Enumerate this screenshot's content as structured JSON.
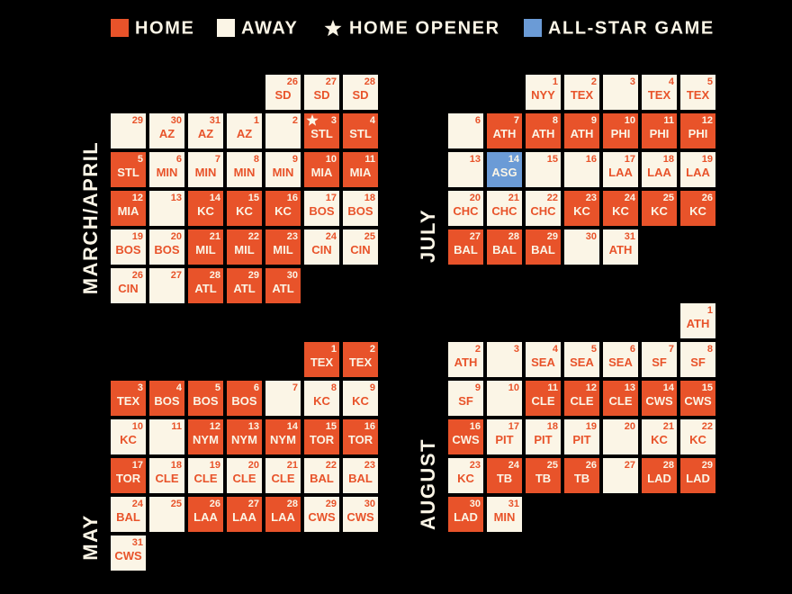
{
  "legend": {
    "home": "HOME",
    "away": "AWAY",
    "opener": "HOME OPENER",
    "all_star": "ALL-STAR GAME"
  },
  "months": [
    {
      "label": "MARCH/APRIL",
      "days": [
        {
          "day": 26,
          "opponent": "SD",
          "game": "away"
        },
        {
          "day": 27,
          "opponent": "SD",
          "game": "away"
        },
        {
          "day": 28,
          "opponent": "SD",
          "game": "away"
        },
        {
          "day": 29,
          "game": "away"
        },
        {
          "day": 30,
          "opponent": "AZ",
          "game": "away"
        },
        {
          "day": 31,
          "opponent": "AZ",
          "game": "away"
        },
        {
          "day": 1,
          "opponent": "AZ",
          "game": "away"
        },
        {
          "day": 2,
          "game": "away"
        },
        {
          "day": 3,
          "opponent": "STL",
          "game": "home",
          "opener": true
        },
        {
          "day": 4,
          "opponent": "STL",
          "game": "home"
        },
        {
          "day": 5,
          "opponent": "STL",
          "game": "home"
        },
        {
          "day": 6,
          "opponent": "MIN",
          "game": "away"
        },
        {
          "day": 7,
          "opponent": "MIN",
          "game": "away"
        },
        {
          "day": 8,
          "opponent": "MIN",
          "game": "away"
        },
        {
          "day": 9,
          "opponent": "MIN",
          "game": "away"
        },
        {
          "day": 10,
          "opponent": "MIA",
          "game": "home"
        },
        {
          "day": 11,
          "opponent": "MIA",
          "game": "home"
        },
        {
          "day": 12,
          "opponent": "MIA",
          "game": "home"
        },
        {
          "day": 13,
          "game": "away"
        },
        {
          "day": 14,
          "opponent": "KC",
          "game": "home"
        },
        {
          "day": 15,
          "opponent": "KC",
          "game": "home"
        },
        {
          "day": 16,
          "opponent": "KC",
          "game": "home"
        },
        {
          "day": 17,
          "opponent": "BOS",
          "game": "away"
        },
        {
          "day": 18,
          "opponent": "BOS",
          "game": "away"
        },
        {
          "day": 19,
          "opponent": "BOS",
          "game": "away"
        },
        {
          "day": 20,
          "opponent": "BOS",
          "game": "away"
        },
        {
          "day": 21,
          "opponent": "MIL",
          "game": "home"
        },
        {
          "day": 22,
          "opponent": "MIL",
          "game": "home"
        },
        {
          "day": 23,
          "opponent": "MIL",
          "game": "home"
        },
        {
          "day": 24,
          "opponent": "CIN",
          "game": "away"
        },
        {
          "day": 25,
          "opponent": "CIN",
          "game": "away"
        },
        {
          "day": 26,
          "opponent": "CIN",
          "game": "away"
        },
        {
          "day": 27,
          "game": "away"
        },
        {
          "day": 28,
          "opponent": "ATL",
          "game": "home"
        },
        {
          "day": 29,
          "opponent": "ATL",
          "game": "home"
        },
        {
          "day": 30,
          "opponent": "ATL",
          "game": "home"
        }
      ]
    },
    {
      "label": "JULY",
      "days": [
        {
          "day": 1,
          "opponent": "NYY",
          "game": "away"
        },
        {
          "day": 2,
          "opponent": "TEX",
          "game": "away"
        },
        {
          "day": 3,
          "game": "away"
        },
        {
          "day": 4,
          "opponent": "TEX",
          "game": "away"
        },
        {
          "day": 5,
          "opponent": "TEX",
          "game": "away"
        },
        {
          "day": 6,
          "game": "away"
        },
        {
          "day": 7,
          "opponent": "ATH",
          "game": "home"
        },
        {
          "day": 8,
          "opponent": "ATH",
          "game": "home"
        },
        {
          "day": 9,
          "opponent": "ATH",
          "game": "home"
        },
        {
          "day": 10,
          "opponent": "PHI",
          "game": "home"
        },
        {
          "day": 11,
          "opponent": "PHI",
          "game": "home"
        },
        {
          "day": 12,
          "opponent": "PHI",
          "game": "home"
        },
        {
          "day": 13,
          "game": "away"
        },
        {
          "day": 14,
          "opponent": "ASG",
          "game": "all_star"
        },
        {
          "day": 15,
          "game": "away"
        },
        {
          "day": 16,
          "game": "away"
        },
        {
          "day": 17,
          "opponent": "LAA",
          "game": "away"
        },
        {
          "day": 18,
          "opponent": "LAA",
          "game": "away"
        },
        {
          "day": 19,
          "opponent": "LAA",
          "game": "away"
        },
        {
          "day": 20,
          "opponent": "CHC",
          "game": "away"
        },
        {
          "day": 21,
          "opponent": "CHC",
          "game": "away"
        },
        {
          "day": 22,
          "opponent": "CHC",
          "game": "away"
        },
        {
          "day": 23,
          "opponent": "KC",
          "game": "home"
        },
        {
          "day": 24,
          "opponent": "KC",
          "game": "home"
        },
        {
          "day": 25,
          "opponent": "KC",
          "game": "home"
        },
        {
          "day": 26,
          "opponent": "KC",
          "game": "home"
        },
        {
          "day": 27,
          "opponent": "BAL",
          "game": "home"
        },
        {
          "day": 28,
          "opponent": "BAL",
          "game": "home"
        },
        {
          "day": 29,
          "opponent": "BAL",
          "game": "home"
        },
        {
          "day": 30,
          "game": "away"
        },
        {
          "day": 31,
          "opponent": "ATH",
          "game": "away"
        }
      ]
    },
    {
      "label": "MAY",
      "days": [
        {
          "day": 1,
          "opponent": "TEX",
          "game": "home"
        },
        {
          "day": 2,
          "opponent": "TEX",
          "game": "home"
        },
        {
          "day": 3,
          "opponent": "TEX",
          "game": "home"
        },
        {
          "day": 4,
          "opponent": "BOS",
          "game": "home"
        },
        {
          "day": 5,
          "opponent": "BOS",
          "game": "home"
        },
        {
          "day": 6,
          "opponent": "BOS",
          "game": "home"
        },
        {
          "day": 7,
          "game": "away"
        },
        {
          "day": 8,
          "opponent": "KC",
          "game": "away"
        },
        {
          "day": 9,
          "opponent": "KC",
          "game": "away"
        },
        {
          "day": 10,
          "opponent": "KC",
          "game": "away"
        },
        {
          "day": 11,
          "game": "away"
        },
        {
          "day": 12,
          "opponent": "NYM",
          "game": "home"
        },
        {
          "day": 13,
          "opponent": "NYM",
          "game": "home"
        },
        {
          "day": 14,
          "opponent": "NYM",
          "game": "home"
        },
        {
          "day": 15,
          "opponent": "TOR",
          "game": "home"
        },
        {
          "day": 16,
          "opponent": "TOR",
          "game": "home"
        },
        {
          "day": 17,
          "opponent": "TOR",
          "game": "home"
        },
        {
          "day": 18,
          "opponent": "CLE",
          "game": "away"
        },
        {
          "day": 19,
          "opponent": "CLE",
          "game": "away"
        },
        {
          "day": 20,
          "opponent": "CLE",
          "game": "away"
        },
        {
          "day": 21,
          "opponent": "CLE",
          "game": "away"
        },
        {
          "day": 22,
          "opponent": "BAL",
          "game": "away"
        },
        {
          "day": 23,
          "opponent": "BAL",
          "game": "away"
        },
        {
          "day": 24,
          "opponent": "BAL",
          "game": "away"
        },
        {
          "day": 25,
          "game": "away"
        },
        {
          "day": 26,
          "opponent": "LAA",
          "game": "home"
        },
        {
          "day": 27,
          "opponent": "LAA",
          "game": "home"
        },
        {
          "day": 28,
          "opponent": "LAA",
          "game": "home"
        },
        {
          "day": 29,
          "opponent": "CWS",
          "game": "away"
        },
        {
          "day": 30,
          "opponent": "CWS",
          "game": "away"
        },
        {
          "day": 31,
          "opponent": "CWS",
          "game": "away"
        }
      ]
    },
    {
      "label": "AUGUST",
      "days": [
        {
          "day": 1,
          "opponent": "ATH",
          "game": "away"
        },
        {
          "day": 2,
          "opponent": "ATH",
          "game": "away"
        },
        {
          "day": 3,
          "game": "away"
        },
        {
          "day": 4,
          "opponent": "SEA",
          "game": "away"
        },
        {
          "day": 5,
          "opponent": "SEA",
          "game": "away"
        },
        {
          "day": 6,
          "opponent": "SEA",
          "game": "away"
        },
        {
          "day": 7,
          "opponent": "SF",
          "game": "away"
        },
        {
          "day": 8,
          "opponent": "SF",
          "game": "away"
        },
        {
          "day": 9,
          "opponent": "SF",
          "game": "away"
        },
        {
          "day": 10,
          "game": "away"
        },
        {
          "day": 11,
          "opponent": "CLE",
          "game": "home"
        },
        {
          "day": 12,
          "opponent": "CLE",
          "game": "home"
        },
        {
          "day": 13,
          "opponent": "CLE",
          "game": "home"
        },
        {
          "day": 14,
          "opponent": "CWS",
          "game": "home"
        },
        {
          "day": 15,
          "opponent": "CWS",
          "game": "home"
        },
        {
          "day": 16,
          "opponent": "CWS",
          "game": "home"
        },
        {
          "day": 17,
          "opponent": "PIT",
          "game": "away"
        },
        {
          "day": 18,
          "opponent": "PIT",
          "game": "away"
        },
        {
          "day": 19,
          "opponent": "PIT",
          "game": "away"
        },
        {
          "day": 20,
          "game": "away"
        },
        {
          "day": 21,
          "opponent": "KC",
          "game": "away"
        },
        {
          "day": 22,
          "opponent": "KC",
          "game": "away"
        },
        {
          "day": 23,
          "opponent": "KC",
          "game": "away"
        },
        {
          "day": 24,
          "opponent": "TB",
          "game": "home"
        },
        {
          "day": 25,
          "opponent": "TB",
          "game": "home"
        },
        {
          "day": 26,
          "opponent": "TB",
          "game": "home"
        },
        {
          "day": 27,
          "game": "away"
        },
        {
          "day": 28,
          "opponent": "LAD",
          "game": "home"
        },
        {
          "day": 29,
          "opponent": "LAD",
          "game": "home"
        },
        {
          "day": 30,
          "opponent": "LAD",
          "game": "home"
        },
        {
          "day": 31,
          "opponent": "MIN",
          "game": "away"
        }
      ]
    }
  ]
}
